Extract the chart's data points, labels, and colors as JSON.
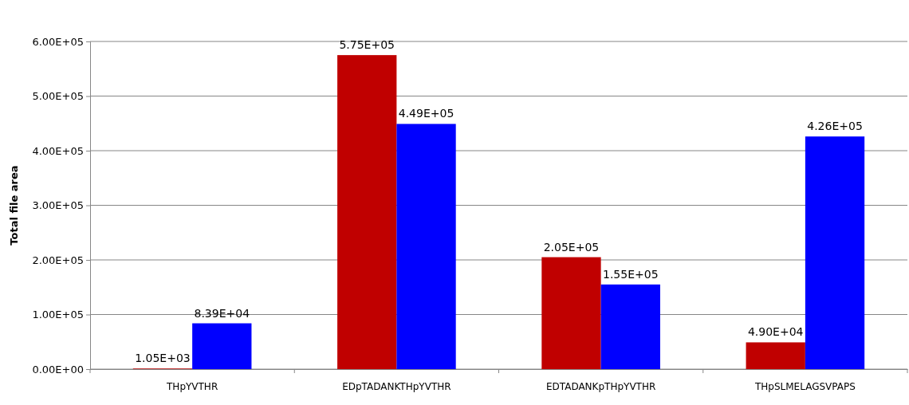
{
  "chart_data": {
    "type": "bar",
    "ylabel": "Total file area",
    "categories": [
      "THpYVTHR",
      "EDpTADANKTHpYVTHR",
      "EDTADANKpTHpYVTHR",
      "THpSLMELAGSVPAPS"
    ],
    "series": [
      {
        "color": "#c00000",
        "values": [
          1050,
          575000,
          205000,
          49000
        ],
        "value_labels": [
          "1.05E+03",
          "5.75E+05",
          "2.05E+05",
          "4.90E+04"
        ]
      },
      {
        "color": "#0000ff",
        "values": [
          83900,
          449000,
          155000,
          426000
        ],
        "value_labels": [
          "8.39E+04",
          "4.49E+05",
          "1.55E+05",
          "4.26E+05"
        ]
      }
    ],
    "ylim": [
      0,
      600000
    ],
    "yticks": [
      {
        "value": 0,
        "label": "0.00E+00"
      },
      {
        "value": 100000,
        "label": "1.00E+05"
      },
      {
        "value": 200000,
        "label": "2.00E+05"
      },
      {
        "value": 300000,
        "label": "3.00E+05"
      },
      {
        "value": 400000,
        "label": "4.00E+05"
      },
      {
        "value": 500000,
        "label": "5.00E+05"
      },
      {
        "value": 600000,
        "label": "6.00E+05"
      }
    ],
    "grid": "y"
  }
}
